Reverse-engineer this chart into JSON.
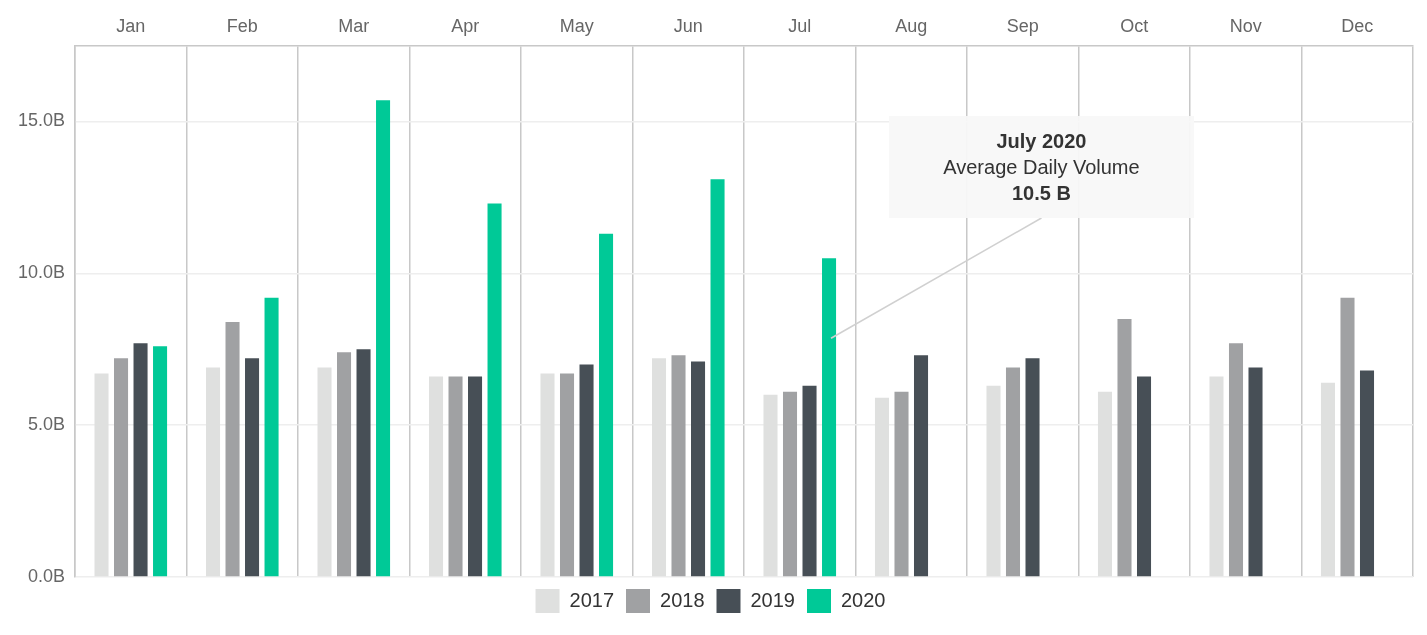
{
  "chart_data": {
    "type": "bar",
    "categories": [
      "Jan",
      "Feb",
      "Mar",
      "Apr",
      "May",
      "Jun",
      "Jul",
      "Aug",
      "Sep",
      "Oct",
      "Nov",
      "Dec"
    ],
    "series": [
      {
        "name": "2017",
        "color": "#dfe0df",
        "values": [
          6.7,
          6.9,
          6.9,
          6.6,
          6.7,
          7.2,
          6.0,
          5.9,
          6.3,
          6.1,
          6.6,
          6.4
        ]
      },
      {
        "name": "2018",
        "color": "#a0a1a3",
        "values": [
          7.2,
          8.4,
          7.4,
          6.6,
          6.7,
          7.3,
          6.1,
          6.1,
          6.9,
          8.5,
          7.7,
          9.2
        ]
      },
      {
        "name": "2019",
        "color": "#474f56",
        "values": [
          7.7,
          7.2,
          7.5,
          6.6,
          7.0,
          7.1,
          6.3,
          7.3,
          7.2,
          6.6,
          6.9,
          6.8
        ]
      },
      {
        "name": "2020",
        "color": "#00c997",
        "values": [
          7.6,
          9.2,
          15.7,
          12.3,
          11.3,
          13.1,
          10.5,
          null,
          null,
          null,
          null,
          null
        ]
      }
    ],
    "ylim": [
      0,
      17.5
    ],
    "yticks": [
      {
        "value": 0,
        "label": "0.0B"
      },
      {
        "value": 5,
        "label": "5.0B"
      },
      {
        "value": 10,
        "label": "10.0B"
      },
      {
        "value": 15,
        "label": "15.0B"
      }
    ],
    "grid": true,
    "legend": "bottom",
    "annotations": [
      "July 2020\nAverage Daily Volume\n10.5 B"
    ]
  }
}
